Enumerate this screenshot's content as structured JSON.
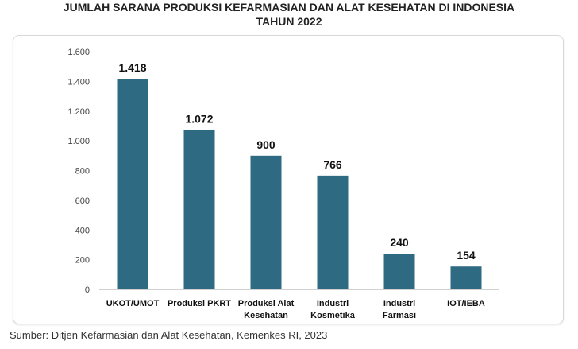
{
  "chart_data": {
    "type": "bar",
    "title": "JUMLAH SARANA PRODUKSI KEFARMASIAN DAN ALAT KESEHATAN DI INDONESIA",
    "subtitle": "TAHUN 2022",
    "categories": [
      [
        "UKOT/UMOT"
      ],
      [
        "Produksi PKRT"
      ],
      [
        "Produksi Alat",
        "Kesehatan"
      ],
      [
        "Industri",
        "Kosmetika"
      ],
      [
        "Industri",
        "Farmasi"
      ],
      [
        "IOT/IEBA"
      ]
    ],
    "values": [
      1418,
      1072,
      900,
      766,
      240,
      154
    ],
    "value_labels": [
      "1.418",
      "1.072",
      "900",
      "766",
      "240",
      "154"
    ],
    "ylim": [
      0,
      1600
    ],
    "yticks": [
      0,
      200,
      400,
      600,
      800,
      1000,
      1200,
      1400,
      1600
    ],
    "ytick_labels": [
      "0",
      "200",
      "400",
      "600",
      "800",
      "1.000",
      "1.200",
      "1.400",
      "1.600"
    ],
    "grid": false,
    "bar_color": "#2e6a82"
  },
  "source": "Sumber: Ditjen Kefarmasian dan Alat Kesehatan, Kemenkes RI, 2023"
}
